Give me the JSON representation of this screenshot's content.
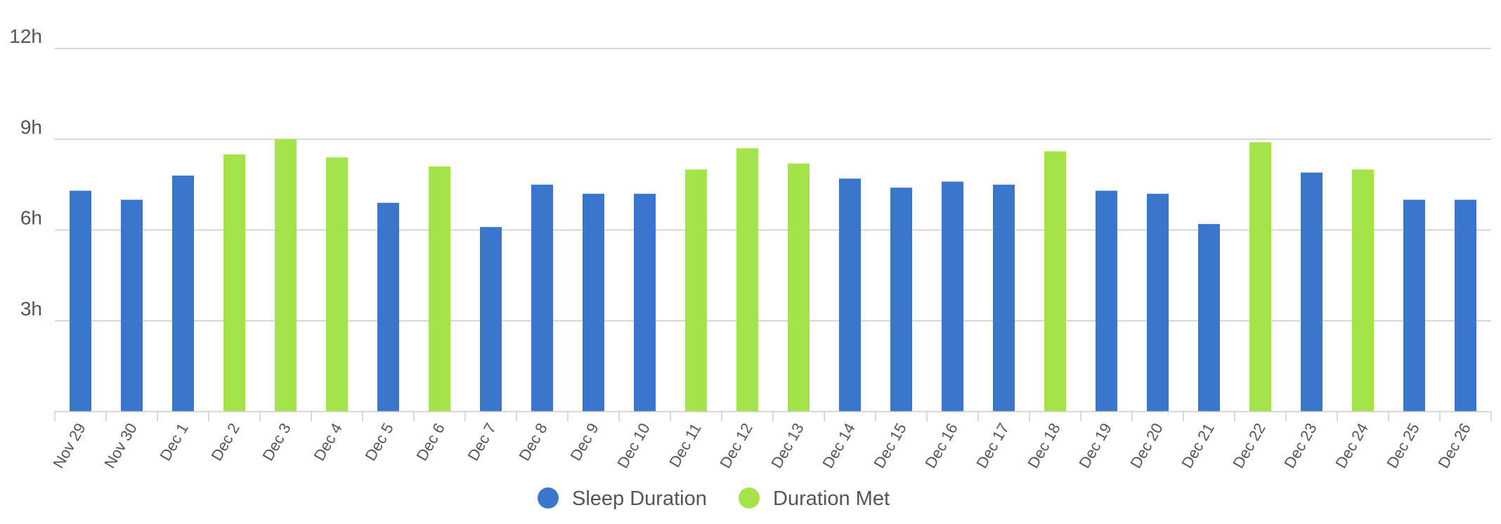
{
  "chart_data": {
    "type": "bar",
    "categories": [
      "Nov 29",
      "Nov 30",
      "Dec 1",
      "Dec 2",
      "Dec 3",
      "Dec 4",
      "Dec 5",
      "Dec 6",
      "Dec 7",
      "Dec 8",
      "Dec 9",
      "Dec 10",
      "Dec 11",
      "Dec 12",
      "Dec 13",
      "Dec 14",
      "Dec 15",
      "Dec 16",
      "Dec 17",
      "Dec 18",
      "Dec 19",
      "Dec 20",
      "Dec 21",
      "Dec 22",
      "Dec 23",
      "Dec 24",
      "Dec 25",
      "Dec 26"
    ],
    "values": [
      7.3,
      7.0,
      7.8,
      8.5,
      9.0,
      8.4,
      6.9,
      8.1,
      6.1,
      7.5,
      7.2,
      7.2,
      8.0,
      8.7,
      8.2,
      7.7,
      7.4,
      7.6,
      7.5,
      8.6,
      7.3,
      7.2,
      6.2,
      8.9,
      7.9,
      8.0,
      7.0,
      7.0
    ],
    "series_index": [
      0,
      0,
      0,
      1,
      1,
      1,
      0,
      1,
      0,
      0,
      0,
      0,
      1,
      1,
      1,
      0,
      0,
      0,
      0,
      1,
      0,
      0,
      0,
      1,
      0,
      1,
      0,
      0
    ],
    "series": [
      {
        "name": "Sleep Duration",
        "color": "#3a76cc"
      },
      {
        "name": "Duration Met",
        "color": "#a3e44a"
      }
    ],
    "yticks": [
      {
        "value": 3,
        "label": "3h"
      },
      {
        "value": 6,
        "label": "6h"
      },
      {
        "value": 9,
        "label": "9h"
      },
      {
        "value": 12,
        "label": "12h"
      }
    ],
    "ylim": [
      0,
      12
    ],
    "grid": true,
    "legend_position": "bottom-center"
  }
}
